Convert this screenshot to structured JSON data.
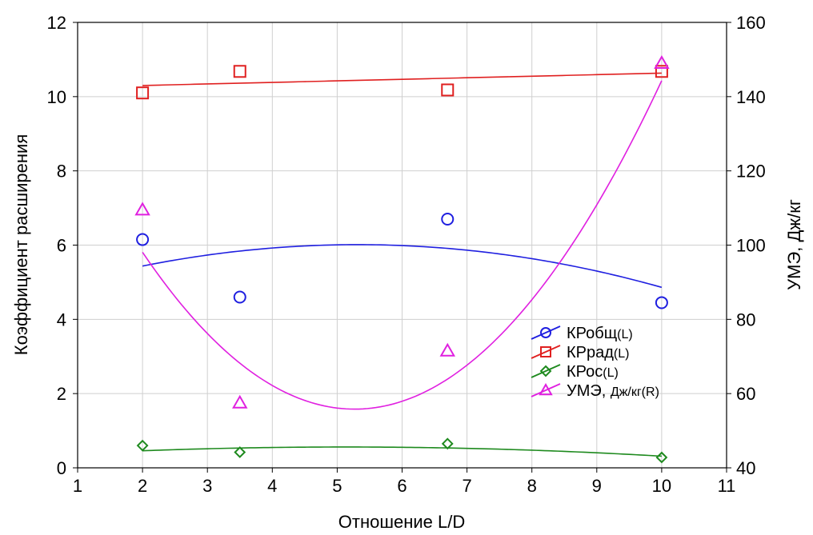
{
  "chart_data": {
    "type": "scatter",
    "xlabel": "Отношение L/D",
    "ylabel_left": "Коэффициент расширения",
    "ylabel_right": "УМЭ, Дж/кг",
    "xlim": [
      1,
      11
    ],
    "ylim_left": [
      0,
      12
    ],
    "ylim_right": [
      40,
      160
    ],
    "x_ticks": [
      1,
      2,
      3,
      4,
      5,
      6,
      7,
      8,
      9,
      10,
      11
    ],
    "y_left_ticks": [
      0,
      2,
      4,
      6,
      8,
      10,
      12
    ],
    "y_right_ticks": [
      40,
      60,
      80,
      100,
      120,
      140,
      160
    ],
    "grid": true,
    "legend_position": "lower-right",
    "series": [
      {
        "key": "krobsh",
        "legend_main": "КРобщ",
        "legend_sub": "(L)",
        "axis": "left",
        "marker": "circle",
        "color": "#1f1fe0",
        "x": [
          2,
          3.5,
          6.7,
          10
        ],
        "y": [
          6.15,
          4.6,
          6.7,
          4.45
        ],
        "fit": [
          -0.0524,
          0.557,
          4.532
        ]
      },
      {
        "key": "krrad",
        "legend_main": "КРрад",
        "legend_sub": "(L)",
        "axis": "left",
        "marker": "square",
        "color": "#e02020",
        "x": [
          2,
          3.5,
          6.7,
          10
        ],
        "y": [
          10.1,
          10.68,
          10.18,
          10.68
        ],
        "fit": [
          0,
          0.0417,
          10.2166
        ]
      },
      {
        "key": "kros",
        "legend_main": "КРос",
        "legend_sub": "(L)",
        "axis": "left",
        "marker": "diamond",
        "color": "#1e8a1e",
        "x": [
          2,
          3.5,
          6.7,
          10
        ],
        "y": [
          0.6,
          0.42,
          0.65,
          0.28
        ],
        "fit": [
          -0.0104,
          0.1066,
          0.2879
        ]
      },
      {
        "key": "ume",
        "legend_main": "УМЭ, ",
        "legend_sub": "Дж/кг(R)",
        "axis": "right",
        "marker": "triangle",
        "color": "#e020e0",
        "x": [
          2,
          3.5,
          6.7,
          10
        ],
        "y": [
          109.5,
          57.5,
          71.5,
          149
        ],
        "fit": [
          3.954,
          -41.67,
          165.6
        ]
      }
    ]
  }
}
